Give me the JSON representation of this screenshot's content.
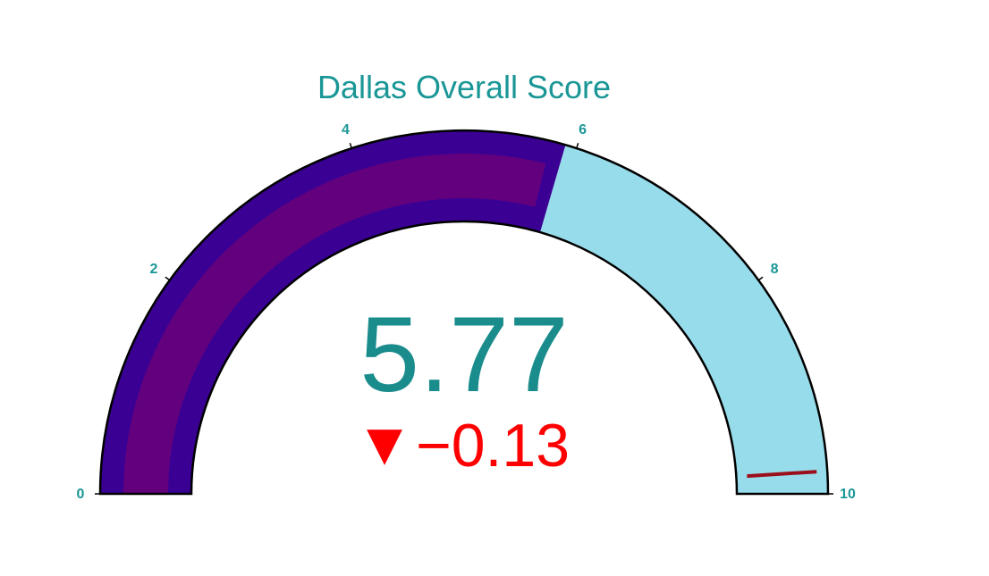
{
  "chart_data": {
    "type": "gauge",
    "title": "Dallas Overall Score",
    "value": 5.77,
    "value_label": "5.77",
    "delta": -0.13,
    "delta_label": "−0.13",
    "delta_symbol": "▼",
    "range": [
      0,
      10
    ],
    "ticks": [
      0,
      2,
      4,
      6,
      8,
      10
    ],
    "tick_labels": [
      "0",
      "2",
      "4",
      "6",
      "8",
      "10"
    ],
    "steps": [
      {
        "range": [
          0,
          5.9
        ],
        "color": "#3a0094"
      },
      {
        "range": [
          5.9,
          10
        ],
        "color": "#97dceb"
      }
    ],
    "bar_color": "#63007d",
    "threshold": 9.8,
    "colors": {
      "title": "#1a9696",
      "ticks": "#1a9696",
      "value": "#1a8c8c",
      "delta_decreasing": "#ff0000",
      "threshold": "#9b0f1b",
      "outline": "#000000"
    }
  }
}
